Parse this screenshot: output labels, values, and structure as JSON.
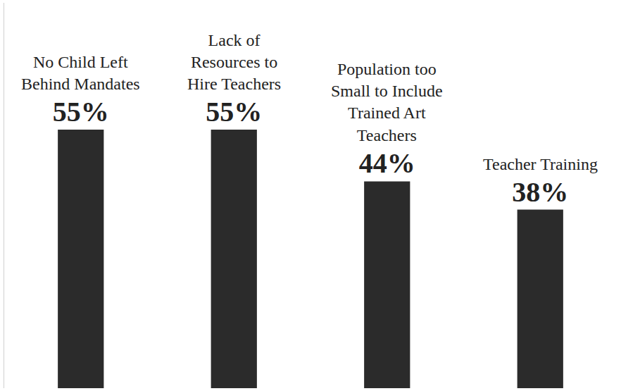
{
  "chart_data": {
    "type": "bar",
    "categories": [
      "No Child Left Behind Mandates",
      "Lack of Resources to Hire Teachers",
      "Population too Small to Include Trained Art Teachers",
      "Teacher Training"
    ],
    "values": [
      55,
      55,
      44,
      38
    ],
    "value_labels": [
      "55%",
      "55%",
      "44%",
      "38%"
    ],
    "data_labels": true,
    "color": "#2b2b2b",
    "ylim": [
      0,
      82
    ],
    "tick_labels": false,
    "grid": false
  }
}
